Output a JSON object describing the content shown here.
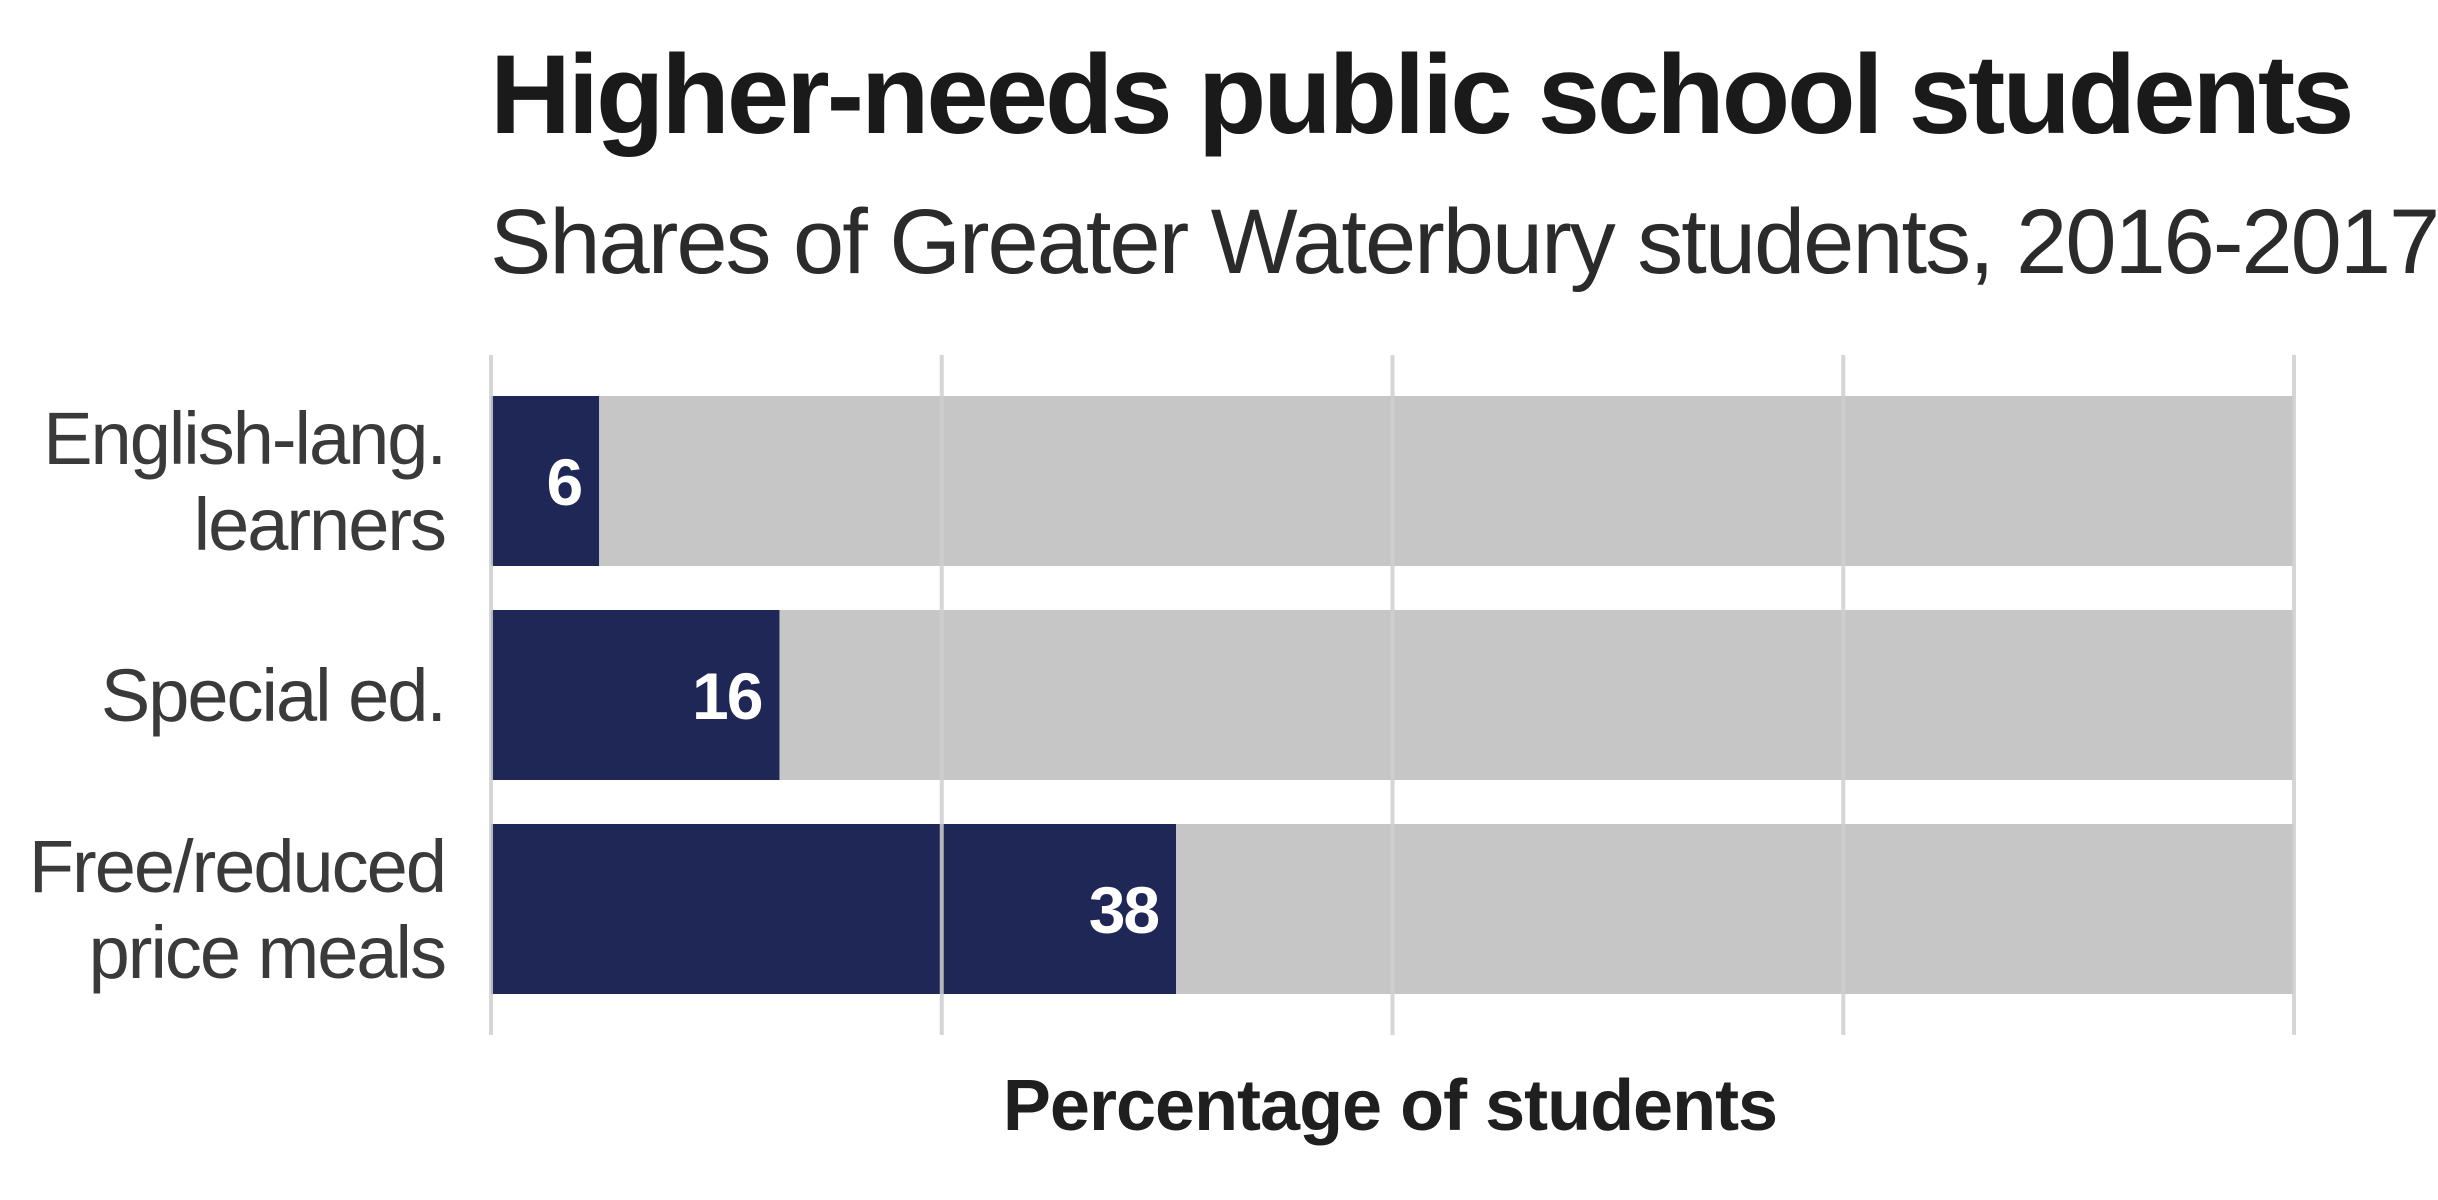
{
  "chart_data": {
    "type": "bar",
    "orientation": "horizontal",
    "stacked": true,
    "title": "Higher-needs public school students",
    "subtitle": "Shares of Greater Waterbury students, 2016-2017",
    "xlabel": "Percentage of students",
    "ylabel": "",
    "xlim": [
      0,
      100
    ],
    "x_ticks": [
      0,
      25,
      50,
      75,
      100
    ],
    "x_tick_labels_visible": false,
    "grid": "vertical",
    "legend": "none",
    "categories": [
      "English-lang. learners",
      "Special ed.",
      "Free/reduced price meals"
    ],
    "category_labels": [
      [
        "English-lang.",
        "learners"
      ],
      [
        "Special ed."
      ],
      [
        "Free/reduced",
        "price meals"
      ]
    ],
    "series": [
      {
        "values": [
          6,
          16,
          38
        ],
        "color": "#1f2757",
        "data_labels": [
          "6",
          "16",
          "38"
        ]
      },
      {
        "values": [
          94,
          84,
          62
        ],
        "color": "#c6c6c6"
      }
    ]
  },
  "colors": {
    "highlight": "#1f2757",
    "remainder": "#c6c6c6",
    "grid": "#cfcfcf",
    "label_text": "#3a3a3a",
    "value_text": "#ffffff"
  }
}
